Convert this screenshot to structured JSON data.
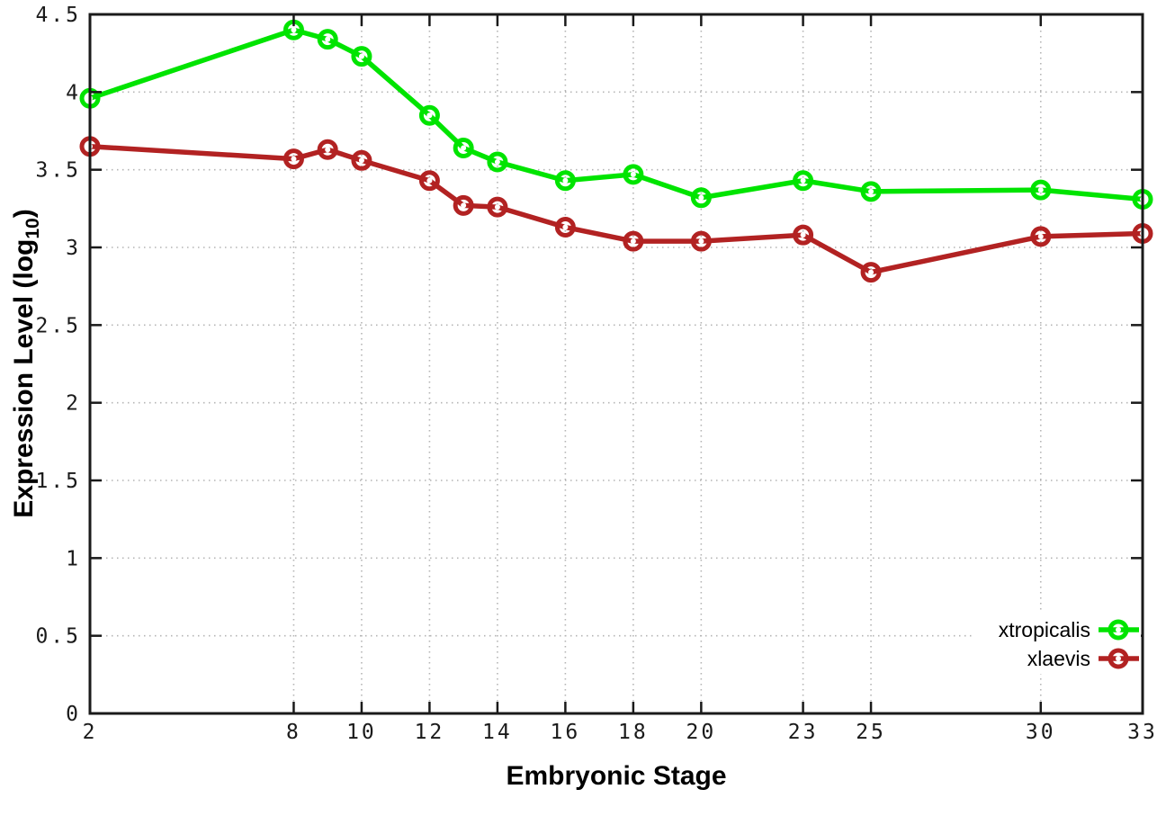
{
  "page": {
    "background": "#ffffff"
  },
  "chart_data": {
    "type": "line",
    "title": "",
    "xlabel": "Embryonic Stage",
    "ylabel": "Expression Level (log10)",
    "ylabel_parts": {
      "main": "Expression Level (log",
      "sub": "10",
      "suffix": ")"
    },
    "xlim": [
      2,
      33
    ],
    "ylim": [
      0,
      4.5
    ],
    "grid": true,
    "grid_style": "dotted",
    "x_ticks": [
      2,
      8,
      10,
      12,
      14,
      16,
      18,
      20,
      23,
      25,
      30,
      33
    ],
    "x_tick_labels": [
      "2",
      "8",
      "10",
      "12",
      "14",
      "16",
      "18",
      "20",
      "23",
      "25",
      "30",
      "33"
    ],
    "y_ticks": [
      0,
      0.5,
      1,
      1.5,
      2,
      2.5,
      3,
      3.5,
      4,
      4.5
    ],
    "y_tick_labels": [
      "0",
      "0.5",
      "1",
      "1.5",
      "2",
      "2.5",
      "3",
      "3.5",
      "4",
      "4.5"
    ],
    "x": [
      2,
      8,
      9,
      10,
      12,
      13,
      14,
      16,
      18,
      20,
      23,
      25,
      30,
      33
    ],
    "series": [
      {
        "name": "xtropicalis",
        "color": "#00e400",
        "marker": "open-circle",
        "values": [
          3.96,
          4.4,
          4.34,
          4.23,
          3.85,
          3.64,
          3.55,
          3.43,
          3.47,
          3.32,
          3.43,
          3.36,
          3.37,
          3.31
        ]
      },
      {
        "name": "xlaevis",
        "color": "#b22222",
        "marker": "open-circle",
        "values": [
          3.65,
          3.57,
          3.63,
          3.56,
          3.43,
          3.27,
          3.26,
          3.13,
          3.04,
          3.04,
          3.08,
          2.84,
          3.07,
          3.09
        ]
      }
    ],
    "legend": {
      "position": "bottom-right",
      "entries": [
        "xtropicalis",
        "xlaevis"
      ]
    },
    "colors": {
      "grid": "#b4b4b4",
      "border": "#1a1a1a",
      "tick": "#1a1a1a",
      "tick_label": "#1a1a1a",
      "axis_title": "#000000",
      "legend_text": "#000000",
      "marker_center": "#ffffff",
      "background": "#ffffff"
    }
  }
}
